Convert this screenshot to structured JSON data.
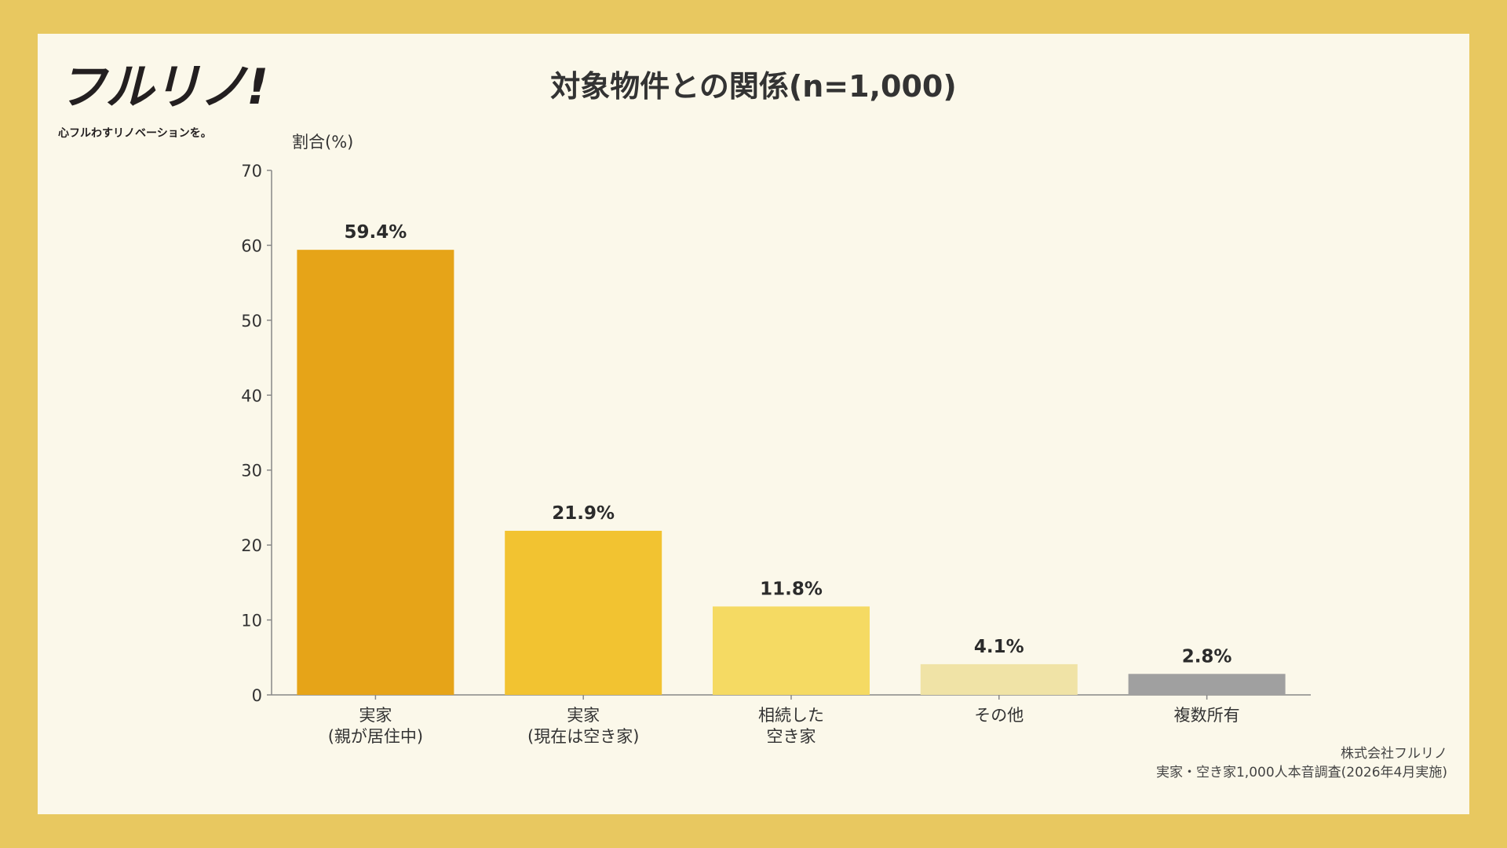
{
  "logo": {
    "word": "フルリノ!",
    "tagline": "心フルわすリノベーションを。"
  },
  "footer": {
    "company": "株式会社フルリノ",
    "source": "実家・空き家1,000人本音調査(2026年4月実施)"
  },
  "colors": {
    "background": "#E8C860",
    "panel": "#FBF8EA",
    "axis": "#888888",
    "text": "#333333"
  },
  "chart_data": {
    "type": "bar",
    "title": "対象物件との関係(n=1,000)",
    "ylabel": "割合(%)",
    "xlabel": "",
    "ylim": [
      0,
      70
    ],
    "yticks": [
      0,
      10,
      20,
      30,
      40,
      50,
      60,
      70
    ],
    "grid": false,
    "categories": [
      [
        "実家",
        "(親が居住中)"
      ],
      [
        "実家",
        "(現在は空き家)"
      ],
      [
        "相続した",
        "空き家"
      ],
      [
        "その他"
      ],
      [
        "複数所有"
      ]
    ],
    "values": [
      59.4,
      21.9,
      11.8,
      4.1,
      2.8
    ],
    "value_labels": [
      "59.4%",
      "21.9%",
      "11.8%",
      "4.1%",
      "2.8%"
    ],
    "bar_colors": [
      "#E6A418",
      "#F2C331",
      "#F5DA63",
      "#F0E3A6",
      "#A0A0A0"
    ]
  }
}
